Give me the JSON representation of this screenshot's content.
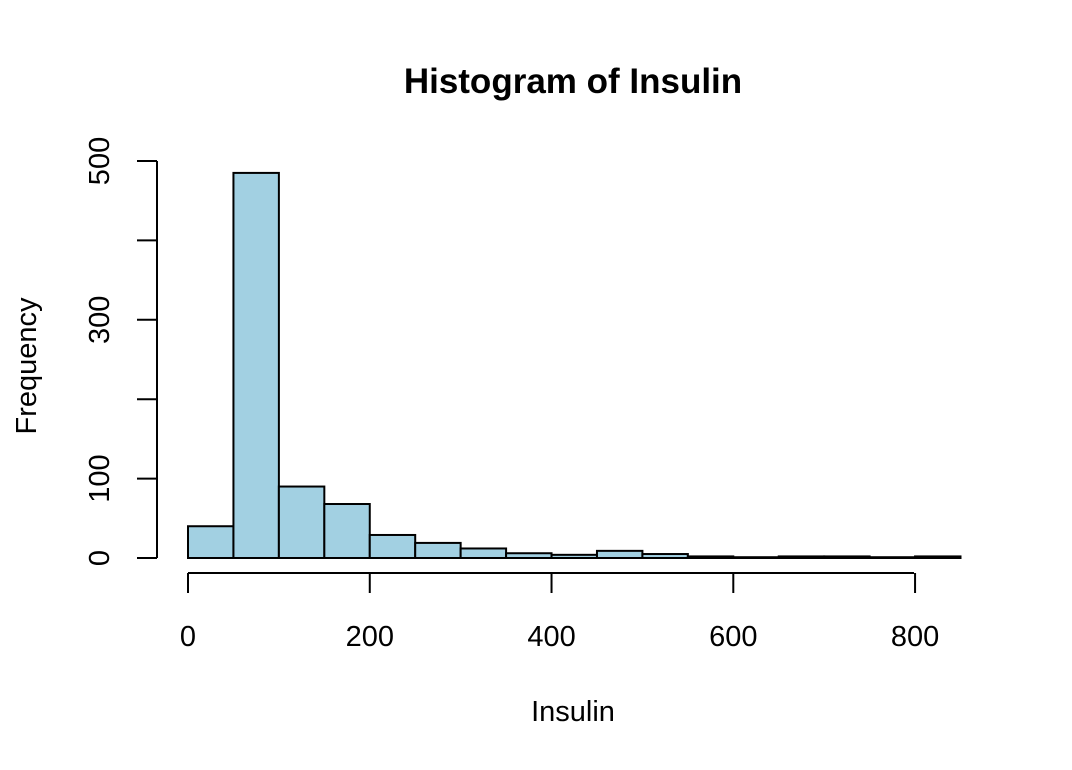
{
  "chart_data": {
    "type": "bar",
    "title": "Histogram of Insulin",
    "xlabel": "Insulin",
    "ylabel": "Frequency",
    "bin_edges": [
      0,
      50,
      100,
      150,
      200,
      250,
      300,
      350,
      400,
      450,
      500,
      550,
      600,
      650,
      700,
      750,
      800,
      850
    ],
    "values": [
      40,
      485,
      90,
      68,
      29,
      19,
      12,
      6,
      4,
      9,
      5,
      2,
      1,
      2,
      2,
      1,
      2
    ],
    "xlim": [
      0,
      850
    ],
    "ylim": [
      0,
      500
    ],
    "x_ticks": [
      0,
      200,
      400,
      600,
      800
    ],
    "x_tick_labels": [
      "0",
      "200",
      "400",
      "600",
      "800"
    ],
    "y_ticks": [
      0,
      100,
      200,
      300,
      400,
      500
    ],
    "y_tick_labels": [
      "0",
      "100",
      "",
      "300",
      "",
      "500"
    ],
    "bar_color": "#A2D0E2",
    "grid": false
  }
}
